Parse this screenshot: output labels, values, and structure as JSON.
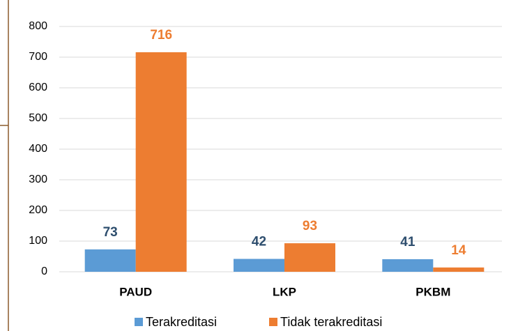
{
  "chart_data": {
    "type": "bar",
    "categories": [
      "PAUD",
      "LKP",
      "PKBM"
    ],
    "series": [
      {
        "name": "Terakreditasi",
        "color": "#5B9BD5",
        "label_color": "#2E4E6E",
        "values": [
          73,
          42,
          41
        ]
      },
      {
        "name": "Tidak terakreditasi",
        "color": "#ED7D31",
        "label_color": "#ED7D31",
        "values": [
          716,
          93,
          14
        ]
      }
    ],
    "ylim": [
      0,
      800
    ],
    "yticks": [
      0,
      100,
      200,
      300,
      400,
      500,
      600,
      700,
      800
    ],
    "grid": true,
    "legend": "bottom"
  }
}
